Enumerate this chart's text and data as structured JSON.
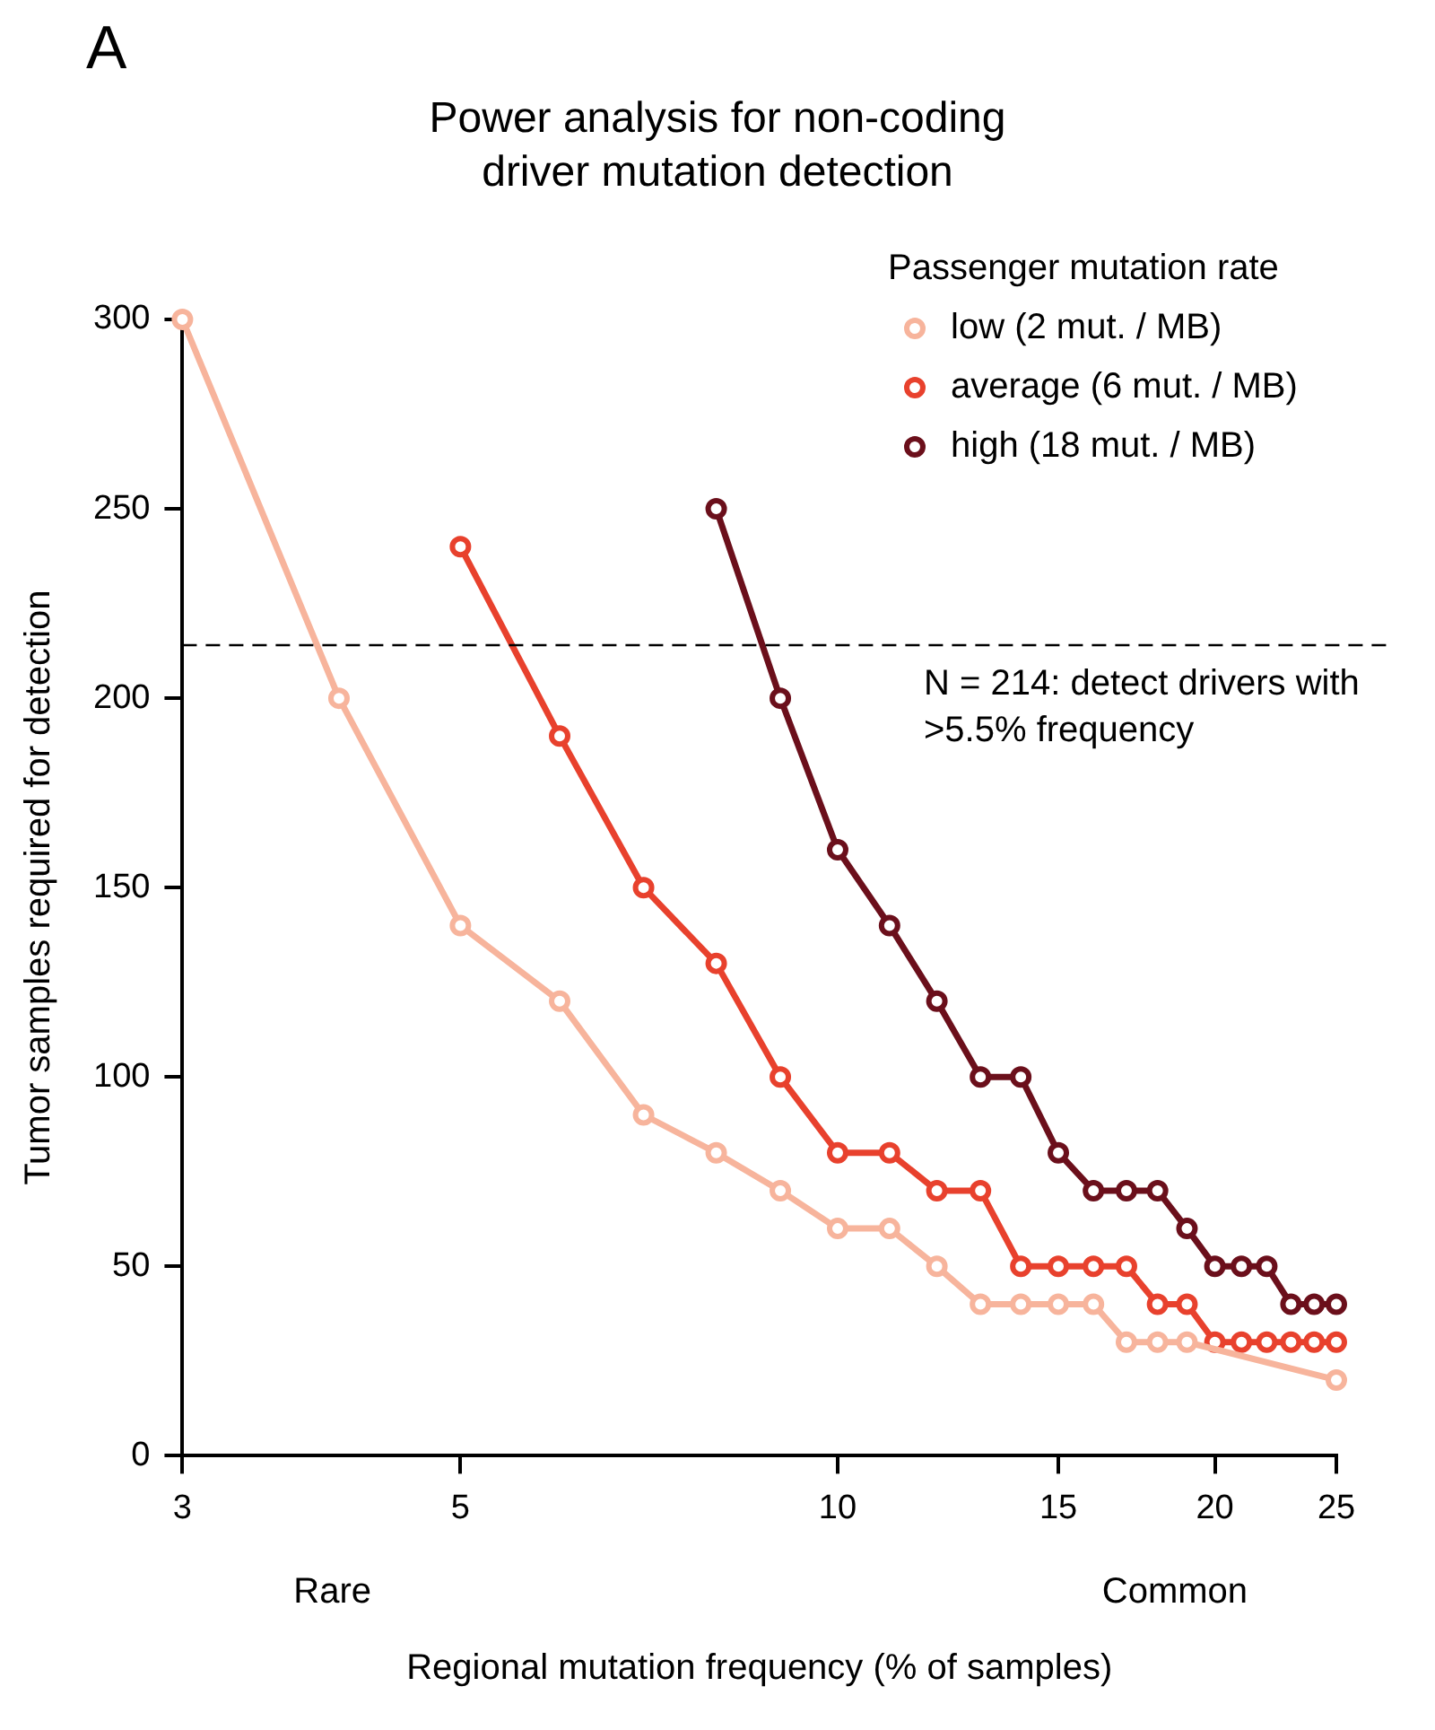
{
  "chart_data": {
    "type": "line",
    "title": "Power analysis for non-coding driver mutation detection",
    "xlabel": "Regional mutation frequency (% of samples)",
    "ylabel": "Tumor samples required for detection",
    "legend_title": "Passenger mutation rate",
    "annotations": [
      "A",
      "Rare",
      "Common"
    ],
    "log": "x",
    "xlim": [
      3,
      25
    ],
    "xticks": [
      3,
      5,
      10,
      15,
      20,
      25
    ],
    "ylim": [
      0,
      300
    ],
    "yticks": [
      0,
      50,
      100,
      150,
      200,
      250,
      300
    ],
    "grid": false,
    "legend": "top right",
    "marker": "circle",
    "line_style": "solid",
    "ref_lines": [
      {
        "axis": "y",
        "value": 214,
        "label": "N = 214: detect drivers with >5.5% frequency",
        "color": "#000000",
        "line_style": "dashed"
      }
    ],
    "series": [
      {
        "name": "low (2 mut. / MB)",
        "color": "#f7b49c",
        "x": [
          3,
          4,
          5,
          6,
          7,
          8,
          9,
          10,
          11,
          12,
          13,
          14,
          15,
          16,
          17,
          18,
          19,
          20,
          21,
          22,
          23,
          24,
          25
        ],
        "values": [
          300,
          200,
          140,
          120,
          90,
          80,
          70,
          60,
          60,
          50,
          40,
          40,
          40,
          40,
          30,
          30,
          30,
          null,
          null,
          null,
          null,
          null,
          20
        ]
      },
      {
        "name": "average (6 mut. / MB)",
        "color": "#e8412d",
        "x": [
          5,
          6,
          7,
          8,
          9,
          10,
          11,
          12,
          13,
          14,
          15,
          16,
          17,
          18,
          19,
          20,
          21,
          22,
          23,
          24,
          25
        ],
        "values": [
          240,
          190,
          150,
          130,
          100,
          80,
          80,
          70,
          70,
          50,
          50,
          50,
          50,
          40,
          40,
          30,
          30,
          30,
          30,
          30,
          30
        ]
      },
      {
        "name": "high (18 mut. / MB)",
        "color": "#6b0f1b",
        "x": [
          8,
          9,
          10,
          11,
          12,
          13,
          14,
          15,
          16,
          17,
          18,
          19,
          20,
          21,
          22,
          23,
          24,
          25
        ],
        "values": [
          250,
          200,
          160,
          140,
          120,
          100,
          100,
          80,
          70,
          70,
          70,
          60,
          50,
          50,
          50,
          40,
          40,
          40
        ]
      }
    ]
  }
}
